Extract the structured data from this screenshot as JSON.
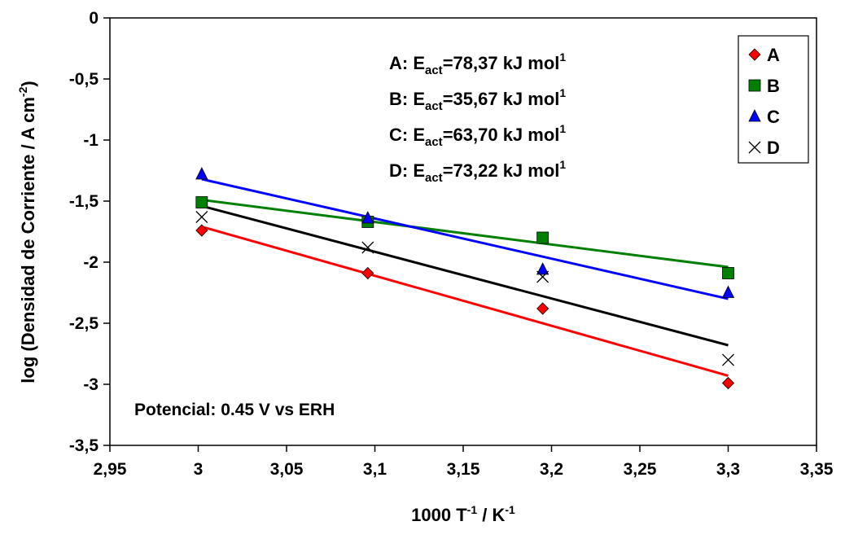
{
  "chart_data": {
    "type": "scatter",
    "title": "",
    "xlabel": "1000 T",
    "xlabel_exp1": "-1",
    "xlabel_mid": " / K",
    "xlabel_exp2": "-1",
    "ylabel": "log (Densidad de Corriente / A cm",
    "ylabel_exp": "-2",
    "ylabel_close": ")",
    "xlim": [
      2.95,
      3.35
    ],
    "ylim": [
      -3.5,
      0
    ],
    "x_ticks": [
      2.95,
      3.0,
      3.05,
      3.1,
      3.15,
      3.2,
      3.25,
      3.3,
      3.35
    ],
    "x_tick_labels": [
      "2,95",
      "3",
      "3,05",
      "3,1",
      "3,15",
      "3,2",
      "3,25",
      "3,3",
      "3,35"
    ],
    "y_ticks": [
      0,
      -0.5,
      -1,
      -1.5,
      -2,
      -2.5,
      -3,
      -3.5
    ],
    "y_tick_labels": [
      "0",
      "-0,5",
      "-1",
      "-1,5",
      "-2",
      "-2,5",
      "-3",
      "-3,5"
    ],
    "grid": false,
    "legend_position": "top-right",
    "series": [
      {
        "name": "A",
        "marker": "diamond",
        "color": "#ff0000",
        "line_color": "#ff0000",
        "x": [
          3.002,
          3.096,
          3.195,
          3.3
        ],
        "y": [
          -1.74,
          -2.09,
          -2.38,
          -2.99
        ],
        "fit": {
          "x": [
            3.002,
            3.3
          ],
          "y": [
            -1.71,
            -2.93
          ]
        },
        "annotation_prefix": "A: E",
        "annotation_sub": "act",
        "annotation_value": "=78,37 kJ mol",
        "annotation_sup": "1"
      },
      {
        "name": "B",
        "marker": "square",
        "color": "#008000",
        "line_color": "#008000",
        "x": [
          3.002,
          3.096,
          3.195,
          3.3
        ],
        "y": [
          -1.51,
          -1.67,
          -1.8,
          -2.09
        ],
        "fit": {
          "x": [
            3.002,
            3.3
          ],
          "y": [
            -1.49,
            -2.04
          ]
        },
        "annotation_prefix": "B: E",
        "annotation_sub": "act",
        "annotation_value": "=35,67 kJ mol",
        "annotation_sup": "1"
      },
      {
        "name": "C",
        "marker": "triangle",
        "color": "#0000ff",
        "line_color": "#0000ff",
        "x": [
          3.002,
          3.096,
          3.195,
          3.3
        ],
        "y": [
          -1.28,
          -1.64,
          -2.06,
          -2.25
        ],
        "fit": {
          "x": [
            3.002,
            3.3
          ],
          "y": [
            -1.32,
            -2.3
          ]
        },
        "annotation_prefix": "C: E",
        "annotation_sub": "act",
        "annotation_value": "=63,70 kJ mol",
        "annotation_sup": "1"
      },
      {
        "name": "D",
        "marker": "x",
        "color": "#000000",
        "line_color": "#000000",
        "x": [
          3.002,
          3.096,
          3.195,
          3.3
        ],
        "y": [
          -1.63,
          -1.88,
          -2.12,
          -2.8
        ],
        "fit": {
          "x": [
            3.002,
            3.3
          ],
          "y": [
            -1.54,
            -2.68
          ]
        },
        "annotation_prefix": "D: E",
        "annotation_sub": "act",
        "annotation_value": "=73,22 kJ mol",
        "annotation_sup": "1"
      }
    ],
    "footnote": "Potencial: 0.45 V vs ERH"
  }
}
